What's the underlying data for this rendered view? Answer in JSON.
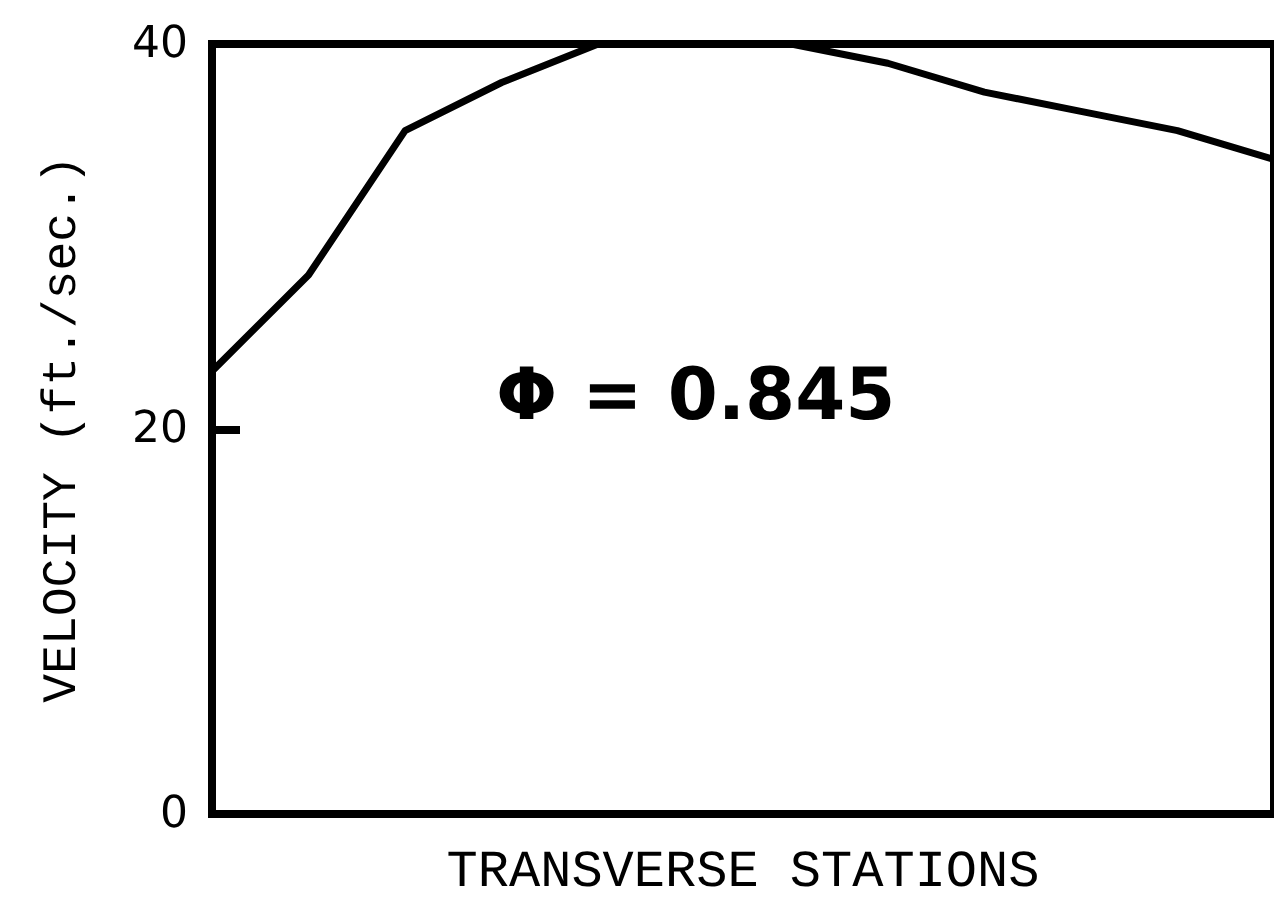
{
  "chart_data": {
    "type": "line",
    "xlabel": "TRANSVERSE STATIONS",
    "ylabel": "VELOCITY (ft./sec.)",
    "categories": [
      null,
      null,
      null,
      null,
      null,
      null,
      null,
      null,
      null,
      null,
      null,
      null
    ],
    "values": [
      23,
      28,
      35.5,
      38,
      40,
      40,
      40,
      39,
      37.5,
      36.5,
      35.5,
      34
    ],
    "color": "#000000",
    "ylim": [
      0,
      40
    ],
    "yticks": [
      0,
      20,
      40
    ],
    "annotations": [
      "Φ = 0.845"
    ],
    "marker": "none",
    "tick_labels": "y"
  }
}
